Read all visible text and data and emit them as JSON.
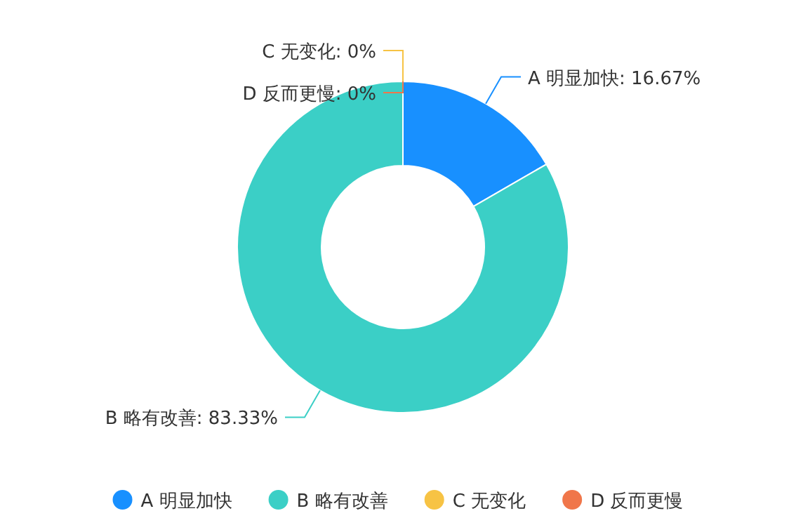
{
  "chart_data": {
    "type": "donut",
    "categories": [
      "A 明显加快",
      "B 略有改善",
      "C 无变化",
      "D 反而更慢"
    ],
    "values": [
      16.67,
      83.33,
      0,
      0
    ],
    "colors": [
      "#1890ff",
      "#3bcfc6",
      "#f7c344",
      "#f0764a"
    ],
    "value_labels": [
      "A 明显加快: 16.67%",
      "B 略有改善: 83.33%",
      "C 无变化: 0%",
      "D 反而更慢: 0%"
    ],
    "legend": "bottom"
  }
}
